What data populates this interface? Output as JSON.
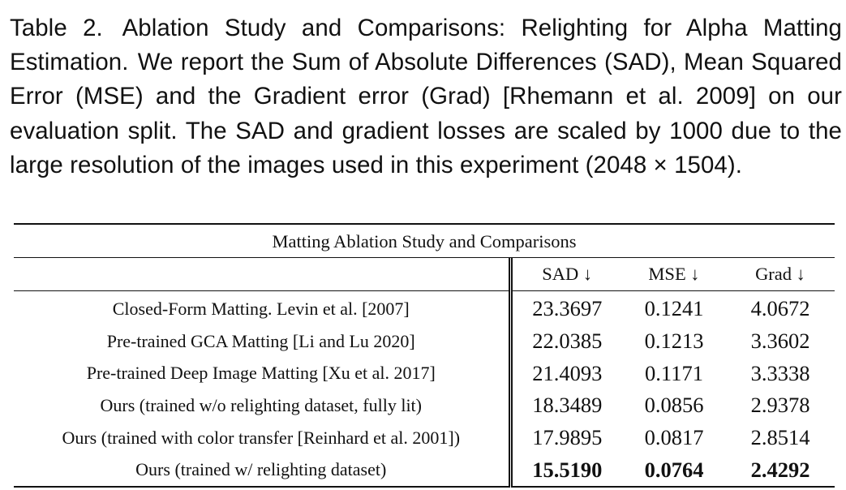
{
  "caption": {
    "label": "Table 2.",
    "title": "Ablation Study and Comparisons: Relighting for Alpha Matting Estimation.",
    "body": "We report the Sum of Absolute Differences (SAD), Mean Squared Error (MSE) and the Gradient error (Grad) [Rhemann et al. 2009] on our evaluation split. The SAD and gradient losses are scaled by 1000 due to the large resolution of the images used in this experiment (2048 × 1504)."
  },
  "table": {
    "title": "Matting Ablation Study and Comparisons",
    "headers": [
      "",
      "SAD ↓",
      "MSE ↓",
      "Grad ↓"
    ],
    "rows": [
      {
        "method": "Closed-Form Matting. Levin et al. [2007]",
        "sad": "23.3697",
        "mse": "0.1241",
        "grad": "4.0672"
      },
      {
        "method": "Pre-trained GCA Matting [Li and Lu 2020]",
        "sad": "22.0385",
        "mse": "0.1213",
        "grad": "3.3602"
      },
      {
        "method": "Pre-trained Deep Image Matting [Xu et al. 2017]",
        "sad": "21.4093",
        "mse": "0.1171",
        "grad": "3.3338"
      },
      {
        "method": "Ours (trained w/o relighting dataset, fully lit)",
        "sad": "18.3489",
        "mse": "0.0856",
        "grad": "2.9378"
      },
      {
        "method": "Ours (trained with color transfer [Reinhard et al. 2001])",
        "sad": "17.9895",
        "mse": "0.0817",
        "grad": "2.8514"
      },
      {
        "method": "Ours (trained w/ relighting dataset)",
        "sad": "15.5190",
        "mse": "0.0764",
        "grad": "2.4292"
      }
    ]
  }
}
